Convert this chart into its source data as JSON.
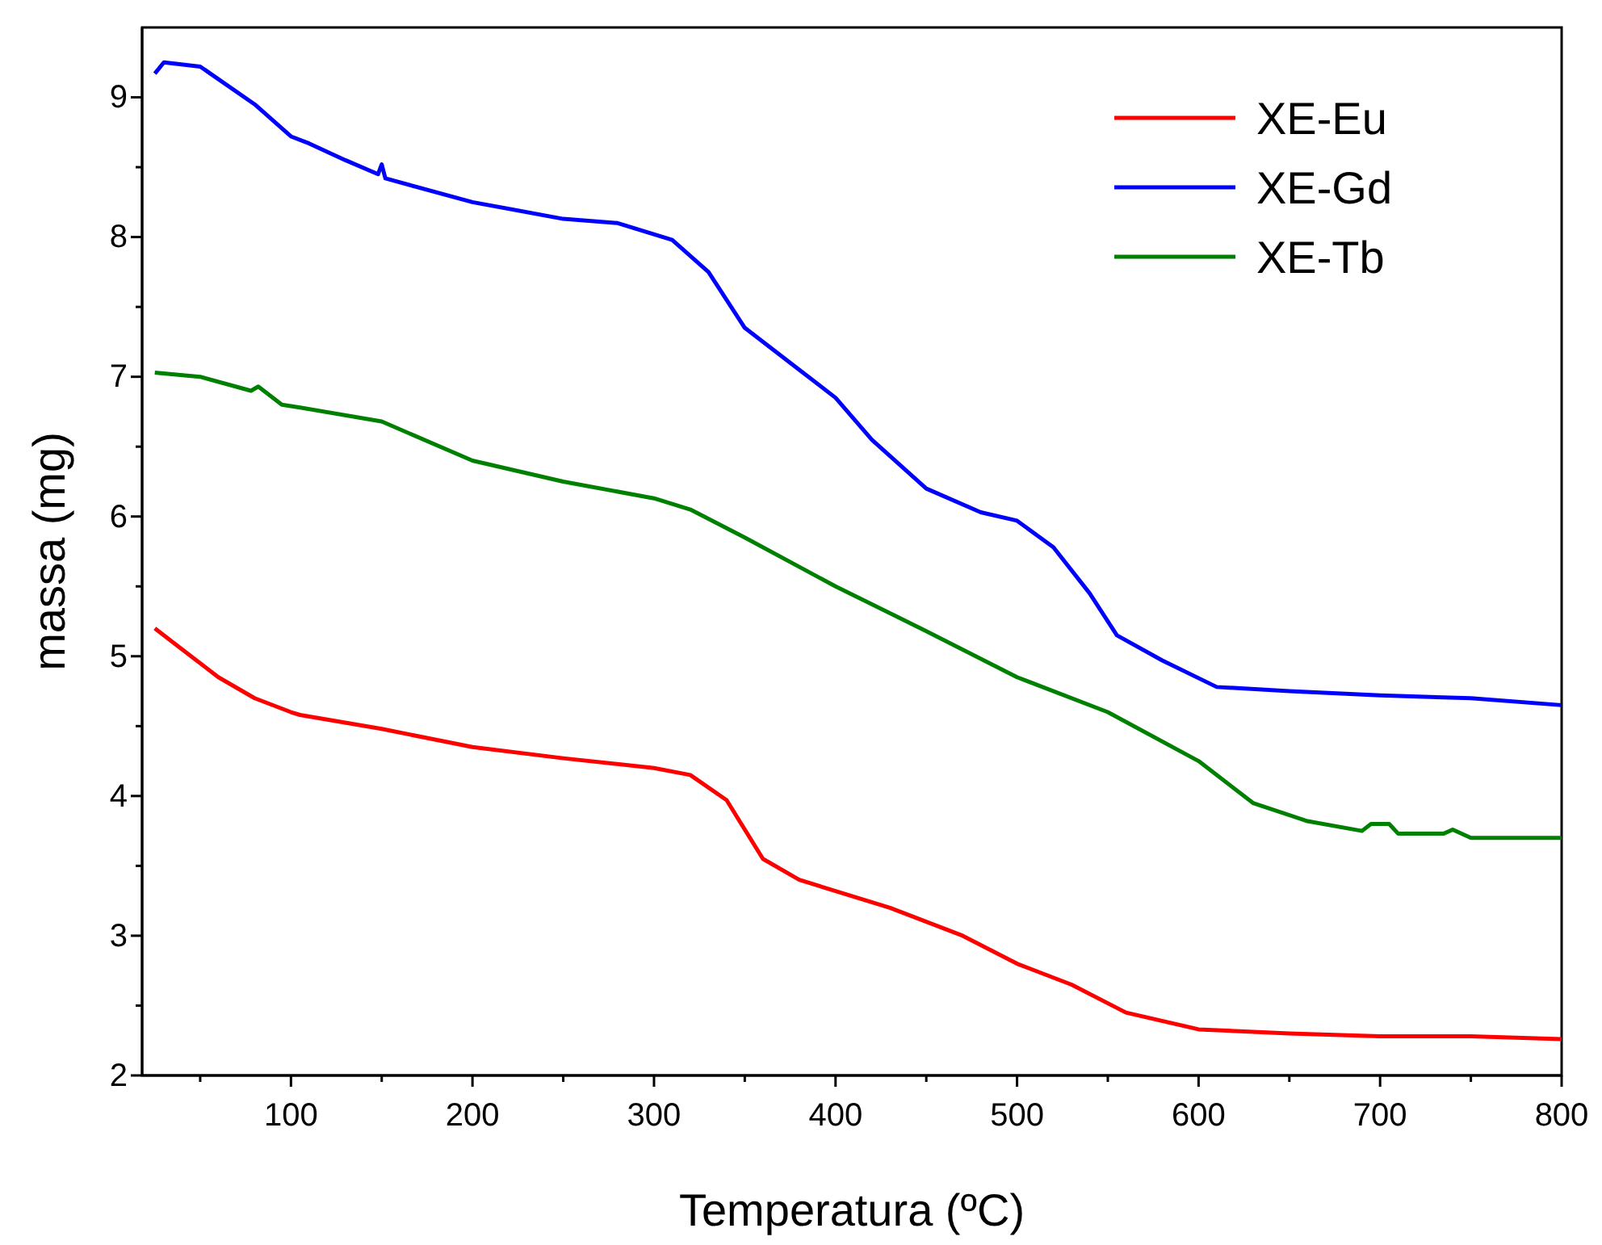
{
  "chart_data": {
    "type": "line",
    "xlabel": "Temperatura (ºC)",
    "ylabel": "massa (mg)",
    "xlim": [
      18,
      800
    ],
    "ylim": [
      2,
      9.5
    ],
    "xticks": [
      {
        "value": 50,
        "label": null
      },
      100,
      {
        "value": 150,
        "label": null
      },
      200,
      {
        "value": 250,
        "label": null
      },
      300,
      {
        "value": 350,
        "label": null
      },
      400,
      {
        "value": 450,
        "label": null
      },
      500,
      {
        "value": 550,
        "label": null
      },
      600,
      {
        "value": 650,
        "label": null
      },
      700,
      {
        "value": 750,
        "label": null
      },
      800
    ],
    "yticks": [
      2,
      {
        "value": 2.5,
        "label": null
      },
      3,
      {
        "value": 3.5,
        "label": null
      },
      4,
      {
        "value": 4.5,
        "label": null
      },
      5,
      {
        "value": 5.5,
        "label": null
      },
      6,
      {
        "value": 6.5,
        "label": null
      },
      7,
      {
        "value": 7.5,
        "label": null
      },
      8,
      {
        "value": 8.5,
        "label": null
      },
      9
    ],
    "grid": false,
    "legend": "top right",
    "line_style": "solid",
    "marker": "none",
    "series": [
      {
        "name": "XE-Eu",
        "color": "#ff0000",
        "x": [
          25,
          40,
          60,
          80,
          100,
          105,
          150,
          200,
          250,
          300,
          320,
          340,
          360,
          380,
          400,
          430,
          470,
          500,
          530,
          560,
          600,
          650,
          700,
          750,
          800
        ],
        "values": [
          5.2,
          5.05,
          4.85,
          4.7,
          4.6,
          4.58,
          4.48,
          4.35,
          4.27,
          4.2,
          4.15,
          3.97,
          3.55,
          3.4,
          3.32,
          3.2,
          3.0,
          2.8,
          2.65,
          2.45,
          2.33,
          2.3,
          2.28,
          2.28,
          2.26
        ]
      },
      {
        "name": "XE-Gd",
        "color": "#0000ff",
        "x": [
          25,
          30,
          50,
          80,
          100,
          110,
          130,
          148,
          150,
          152,
          200,
          250,
          280,
          310,
          330,
          350,
          380,
          400,
          420,
          450,
          480,
          500,
          520,
          540,
          555,
          580,
          610,
          650,
          700,
          750,
          800
        ],
        "values": [
          9.17,
          9.25,
          9.22,
          8.95,
          8.72,
          8.67,
          8.55,
          8.45,
          8.52,
          8.42,
          8.25,
          8.13,
          8.1,
          7.98,
          7.75,
          7.35,
          7.05,
          6.85,
          6.55,
          6.2,
          6.03,
          5.97,
          5.78,
          5.45,
          5.15,
          4.97,
          4.78,
          4.75,
          4.72,
          4.7,
          4.65
        ]
      },
      {
        "name": "XE-Tb",
        "color": "#008000",
        "x": [
          25,
          50,
          78,
          82,
          95,
          105,
          150,
          200,
          250,
          300,
          320,
          350,
          400,
          450,
          500,
          550,
          600,
          630,
          660,
          690,
          695,
          705,
          710,
          735,
          740,
          750,
          800
        ],
        "values": [
          7.03,
          7.0,
          6.9,
          6.93,
          6.8,
          6.78,
          6.68,
          6.4,
          6.25,
          6.13,
          6.05,
          5.85,
          5.5,
          5.18,
          4.85,
          4.6,
          4.25,
          3.95,
          3.82,
          3.75,
          3.8,
          3.8,
          3.73,
          3.73,
          3.76,
          3.7,
          3.7
        ]
      }
    ]
  }
}
